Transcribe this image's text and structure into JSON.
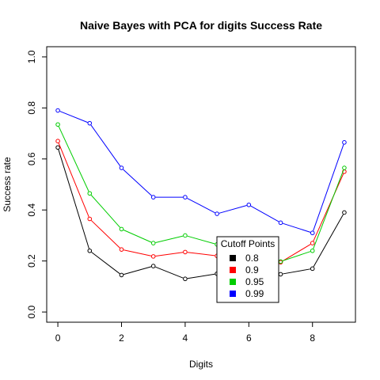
{
  "chart_data": {
    "type": "line",
    "title": "Naive Bayes with PCA for digits Success Rate",
    "xlabel": "Digits",
    "ylabel": "Success rate",
    "x": [
      0,
      1,
      2,
      3,
      4,
      5,
      6,
      7,
      8,
      9
    ],
    "xticks": [
      "0",
      "2",
      "4",
      "6",
      "8"
    ],
    "yticks": [
      "0.0",
      "0.2",
      "0.4",
      "0.6",
      "0.8",
      "1.0"
    ],
    "xlim": [
      -0.35,
      9.35
    ],
    "ylim": [
      -0.04,
      1.04
    ],
    "grid": false,
    "legend": {
      "title": "Cutoff Points",
      "placement": "bottom-center"
    },
    "series": [
      {
        "name": "0.8",
        "color": "#000000",
        "values": [
          0.645,
          0.24,
          0.145,
          0.18,
          0.13,
          0.15,
          0.165,
          0.148,
          0.17,
          0.39
        ]
      },
      {
        "name": "0.9",
        "color": "#ff0000",
        "values": [
          0.67,
          0.365,
          0.245,
          0.218,
          0.235,
          0.22,
          0.215,
          0.195,
          0.27,
          0.55
        ]
      },
      {
        "name": "0.95",
        "color": "#00cd00",
        "values": [
          0.735,
          0.465,
          0.325,
          0.27,
          0.3,
          0.265,
          0.27,
          0.198,
          0.24,
          0.565
        ]
      },
      {
        "name": "0.99",
        "color": "#0000ff",
        "values": [
          0.79,
          0.74,
          0.565,
          0.45,
          0.45,
          0.385,
          0.42,
          0.35,
          0.31,
          0.665
        ]
      }
    ]
  }
}
